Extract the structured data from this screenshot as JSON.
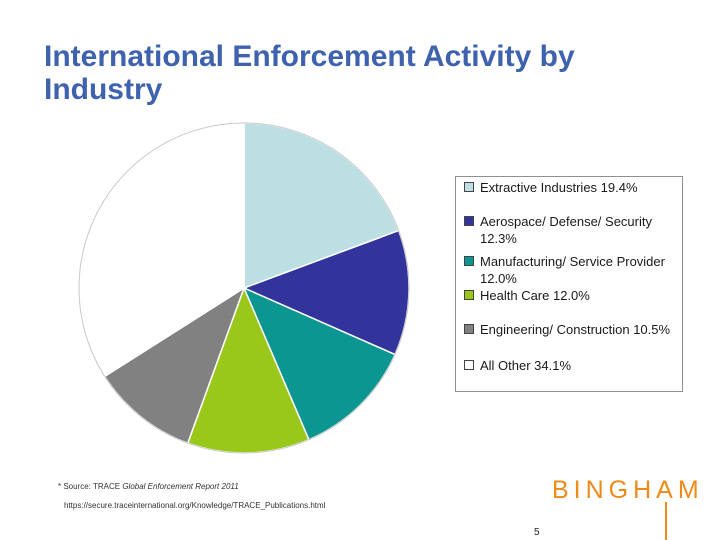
{
  "slide": {
    "title": "International Enforcement Activity by Industry",
    "source_prefix": "* Source: TRACE ",
    "source_report": "Global Enforcement Report 2011",
    "source_url": "https://secure.traceinternational.org/Knowledge/TRACE_Publications.html",
    "brand": "BINGHAM",
    "page_number": "5"
  },
  "colors": {
    "title": "#3e62ad",
    "brand": "#f08a17"
  },
  "chart_data": {
    "type": "pie",
    "title": "International Enforcement Activity by Industry",
    "legend_position": "right",
    "slices": [
      {
        "label": "Extractive Industries",
        "value": 19.4,
        "color": "#bcdfe3",
        "legend_text": "Extractive Industries 19.4%"
      },
      {
        "label": "Aerospace/ Defense/ Security",
        "value": 12.3,
        "color": "#33349b",
        "legend_text": "Aerospace/ Defense/ Security 12.3%"
      },
      {
        "label": "Manufacturing/ Service Provider",
        "value": 12.0,
        "color": "#0b9692",
        "legend_text": "Manufacturing/ Service Provider 12.0%"
      },
      {
        "label": "Health Care",
        "value": 12.0,
        "color": "#99c71a",
        "legend_text": "Health Care 12.0%"
      },
      {
        "label": "Engineering/ Construction",
        "value": 10.5,
        "color": "#818181",
        "legend_text": "Engineering/ Construction 10.5%"
      },
      {
        "label": "All Other",
        "value": 34.1,
        "color": "#ffffff",
        "legend_text": "All Other 34.1%"
      }
    ]
  }
}
